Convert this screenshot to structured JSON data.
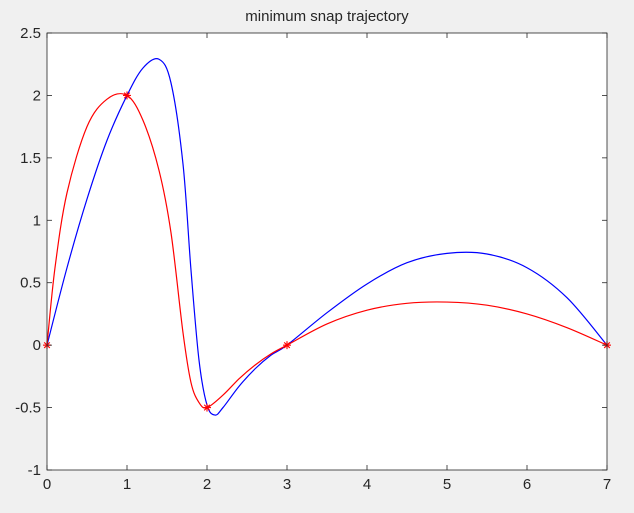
{
  "figure": {
    "background": "#f0f0f0",
    "axes_background": "#ffffff"
  },
  "chart_data": {
    "type": "line",
    "title": "minimum snap trajectory",
    "xlabel": "",
    "ylabel": "",
    "xlim": [
      0,
      7
    ],
    "ylim": [
      -1,
      2.5
    ],
    "xticks": [
      "0",
      "1",
      "2",
      "3",
      "4",
      "5",
      "6",
      "7"
    ],
    "yticks": [
      "-1",
      "-0.5",
      "0",
      "0.5",
      "1",
      "1.5",
      "2",
      "2.5"
    ],
    "grid": false,
    "legend": "none",
    "waypoints": {
      "x": [
        0,
        1,
        2,
        3,
        7
      ],
      "y": [
        0,
        2,
        -0.5,
        0,
        0
      ],
      "marker": "*",
      "color": "#ff0000"
    },
    "series": [
      {
        "color": "#0000ff",
        "x": [
          0,
          0.25,
          0.5,
          0.75,
          1,
          1.2,
          1.4,
          1.55,
          1.7,
          1.8,
          1.9,
          2.0,
          2.1,
          2.2,
          2.4,
          2.6,
          2.8,
          3,
          3.5,
          4,
          4.5,
          5,
          5.5,
          6,
          6.5,
          7
        ],
        "y": [
          0,
          0.62,
          1.17,
          1.64,
          2.0,
          2.22,
          2.29,
          2.1,
          1.45,
          0.6,
          -0.12,
          -0.48,
          -0.56,
          -0.5,
          -0.33,
          -0.19,
          -0.08,
          0,
          0.26,
          0.49,
          0.66,
          0.735,
          0.73,
          0.62,
          0.38,
          0
        ]
      },
      {
        "color": "#ff0000",
        "x": [
          0,
          0.1,
          0.25,
          0.5,
          0.75,
          1,
          1.2,
          1.4,
          1.55,
          1.7,
          1.8,
          1.9,
          2.0,
          2.2,
          2.4,
          2.6,
          2.8,
          3,
          3.5,
          4,
          4.5,
          5,
          5.5,
          6,
          6.5,
          7
        ],
        "y": [
          0,
          0.62,
          1.22,
          1.75,
          1.97,
          2.0,
          1.8,
          1.4,
          0.9,
          0.1,
          -0.3,
          -0.46,
          -0.5,
          -0.4,
          -0.27,
          -0.16,
          -0.07,
          0,
          0.17,
          0.28,
          0.335,
          0.345,
          0.32,
          0.25,
          0.14,
          0
        ]
      }
    ]
  }
}
